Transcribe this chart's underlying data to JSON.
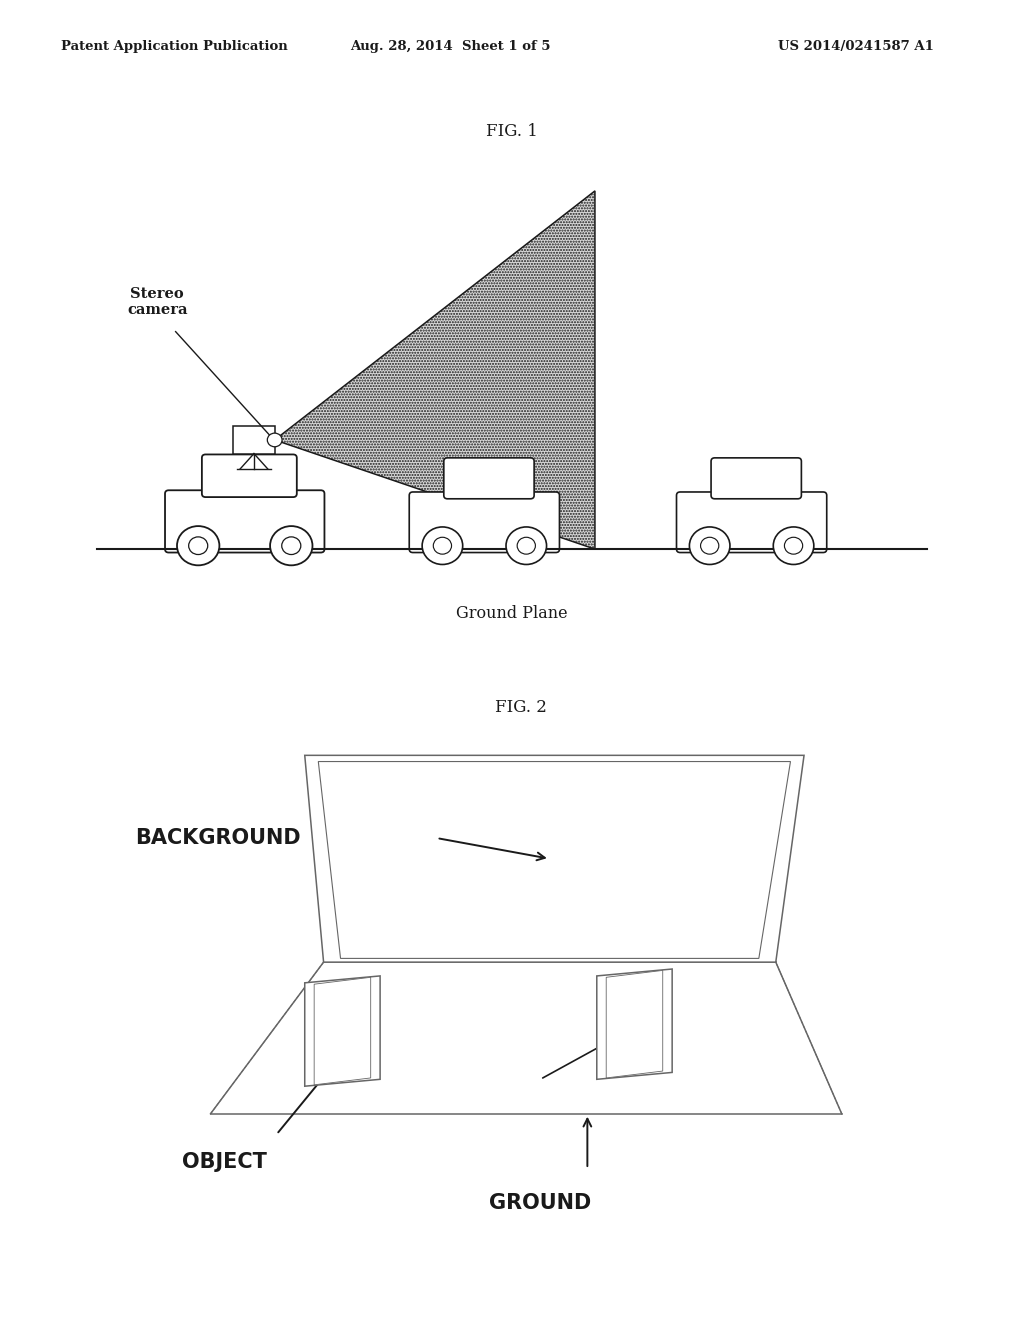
{
  "bg_color": "#ffffff",
  "header_left": "Patent Application Publication",
  "header_mid": "Aug. 28, 2014  Sheet 1 of 5",
  "header_right": "US 2014/0241587 A1",
  "fig1_label": "FIG. 1",
  "fig2_label": "FIG. 2",
  "ground_plane_label": "Ground Plane",
  "stereo_camera_label": "Stereo\ncamera",
  "background_label": "BACKGROUND",
  "object_label": "OBJECT",
  "ground_label": "GROUND",
  "line_color": "#1a1a1a",
  "gray_color": "#666666"
}
